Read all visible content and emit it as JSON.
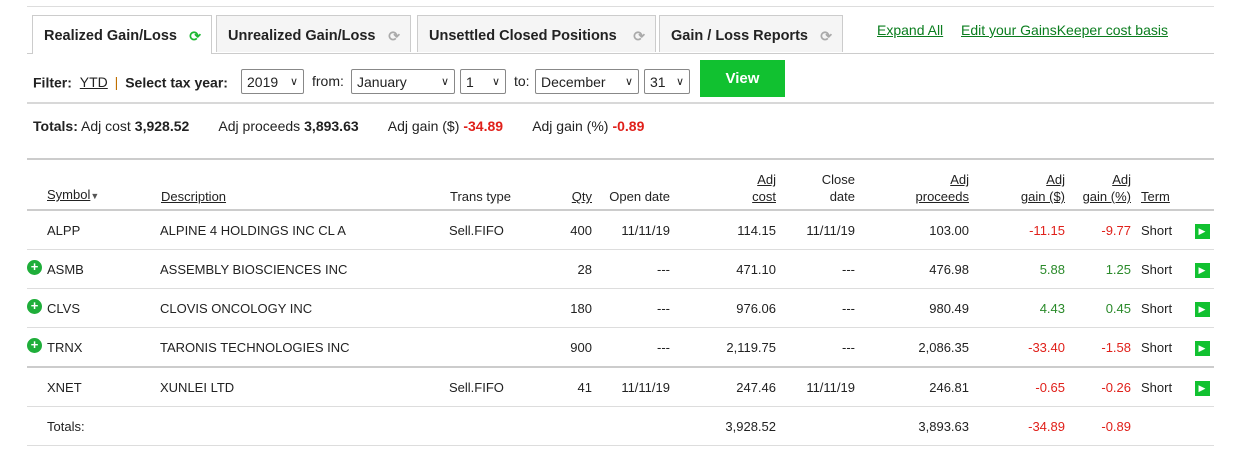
{
  "tabs": [
    {
      "label": "Realized Gain/Loss",
      "active": true
    },
    {
      "label": "Unrealized Gain/Loss"
    },
    {
      "label": "Unsettled Closed Positions"
    },
    {
      "label": "Gain / Loss Reports"
    }
  ],
  "links": {
    "expand_all": "Expand All",
    "edit_cost_basis": "Edit your GainsKeeper cost basis"
  },
  "filter": {
    "label": "Filter:",
    "ytd": "YTD",
    "sep": "|",
    "tax_year_label": "Select tax year:",
    "tax_year": "2019",
    "from_label": "from:",
    "from_month": "January",
    "from_day": "1",
    "to_label": "to:",
    "to_month": "December",
    "to_day": "31",
    "view": "View"
  },
  "totals": {
    "label": "Totals:",
    "adj_cost_label": "Adj cost",
    "adj_cost": "3,928.52",
    "adj_proceeds_label": "Adj proceeds",
    "adj_proceeds": "3,893.63",
    "adj_gain_usd_label": "Adj gain ($)",
    "adj_gain_usd": "-34.89",
    "adj_gain_pct_label": "Adj gain (%)",
    "adj_gain_pct": "-0.89"
  },
  "headers": {
    "symbol": "Symbol",
    "description": "Description",
    "trans_type": "Trans type",
    "qty": "Qty",
    "open_date": "Open date",
    "adj_cost_1": "Adj",
    "adj_cost_2": "cost",
    "close_date_1": "Close",
    "close_date_2": "date",
    "adj_proceeds_1": "Adj",
    "adj_proceeds_2": "proceeds",
    "gain_usd_1": "Adj",
    "gain_usd_2": "gain ($)",
    "gain_pct_1": "Adj",
    "gain_pct_2": "gain (%)",
    "term": "Term"
  },
  "rows": [
    {
      "symbol": "ALPP",
      "description": "ALPINE 4 HOLDINGS INC CL A",
      "trans_type": "Sell.FIFO",
      "qty": "400",
      "open_date": "11/11/19",
      "adj_cost": "114.15",
      "close_date": "11/11/19",
      "adj_proceeds": "103.00",
      "gain_usd": "-11.15",
      "gain_pct": "-9.77",
      "term": "Short",
      "expandable": false
    },
    {
      "symbol": "ASMB",
      "description": "ASSEMBLY BIOSCIENCES INC",
      "trans_type": "",
      "qty": "28",
      "open_date": "---",
      "adj_cost": "471.10",
      "close_date": "---",
      "adj_proceeds": "476.98",
      "gain_usd": "5.88",
      "gain_pct": "1.25",
      "term": "Short",
      "expandable": true
    },
    {
      "symbol": "CLVS",
      "description": "CLOVIS ONCOLOGY INC",
      "trans_type": "",
      "qty": "180",
      "open_date": "---",
      "adj_cost": "976.06",
      "close_date": "---",
      "adj_proceeds": "980.49",
      "gain_usd": "4.43",
      "gain_pct": "0.45",
      "term": "Short",
      "expandable": true
    },
    {
      "symbol": "TRNX",
      "description": "TARONIS TECHNOLOGIES INC",
      "trans_type": "",
      "qty": "900",
      "open_date": "---",
      "adj_cost": "2,119.75",
      "close_date": "---",
      "adj_proceeds": "2,086.35",
      "gain_usd": "-33.40",
      "gain_pct": "-1.58",
      "term": "Short",
      "expandable": true
    },
    {
      "symbol": "XNET",
      "description": "XUNLEI LTD",
      "trans_type": "Sell.FIFO",
      "qty": "41",
      "open_date": "11/11/19",
      "adj_cost": "247.46",
      "close_date": "11/11/19",
      "adj_proceeds": "246.81",
      "gain_usd": "-0.65",
      "gain_pct": "-0.26",
      "term": "Short",
      "expandable": false
    }
  ],
  "footer": {
    "label": "Totals:",
    "adj_cost": "3,928.52",
    "adj_proceeds": "3,893.63",
    "gain_usd": "-34.89",
    "gain_pct": "-0.89"
  },
  "colors": {
    "accent": "#11c130",
    "negative": "#e0201a",
    "positive": "#2a8a2a",
    "link": "#0a7d1e"
  }
}
